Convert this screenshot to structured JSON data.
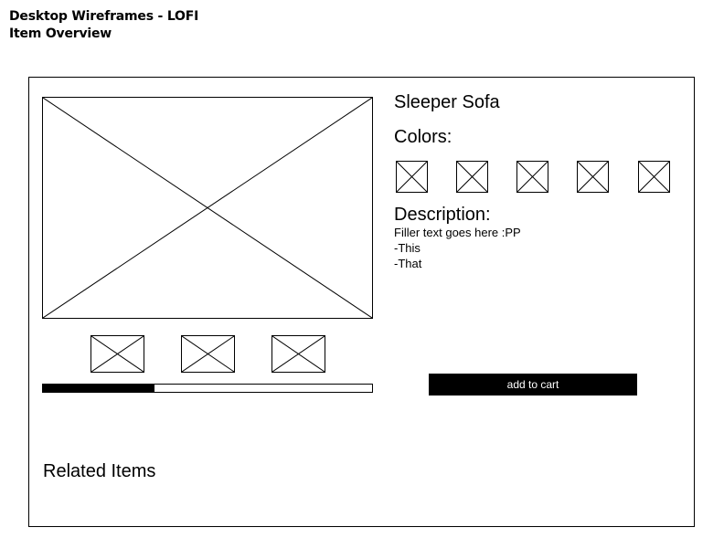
{
  "header": {
    "title_line1": "Desktop Wireframes - LOFI",
    "title_line2": "Item Overview"
  },
  "product": {
    "name": "Sleeper Sofa",
    "colors_label": "Colors:",
    "color_swatch_count": 5,
    "description_label": "Description:",
    "description_lines": [
      "Filler text goes here :PP",
      "-This",
      "-That"
    ],
    "add_to_cart_label": "add to cart"
  },
  "gallery": {
    "thumbnail_count": 3,
    "image_scroll_progress_percent": 34
  },
  "related": {
    "heading": "Related Items"
  },
  "colors": {
    "line": "#000000",
    "background": "#ffffff",
    "button_background": "#000000",
    "button_text": "#ffffff"
  }
}
